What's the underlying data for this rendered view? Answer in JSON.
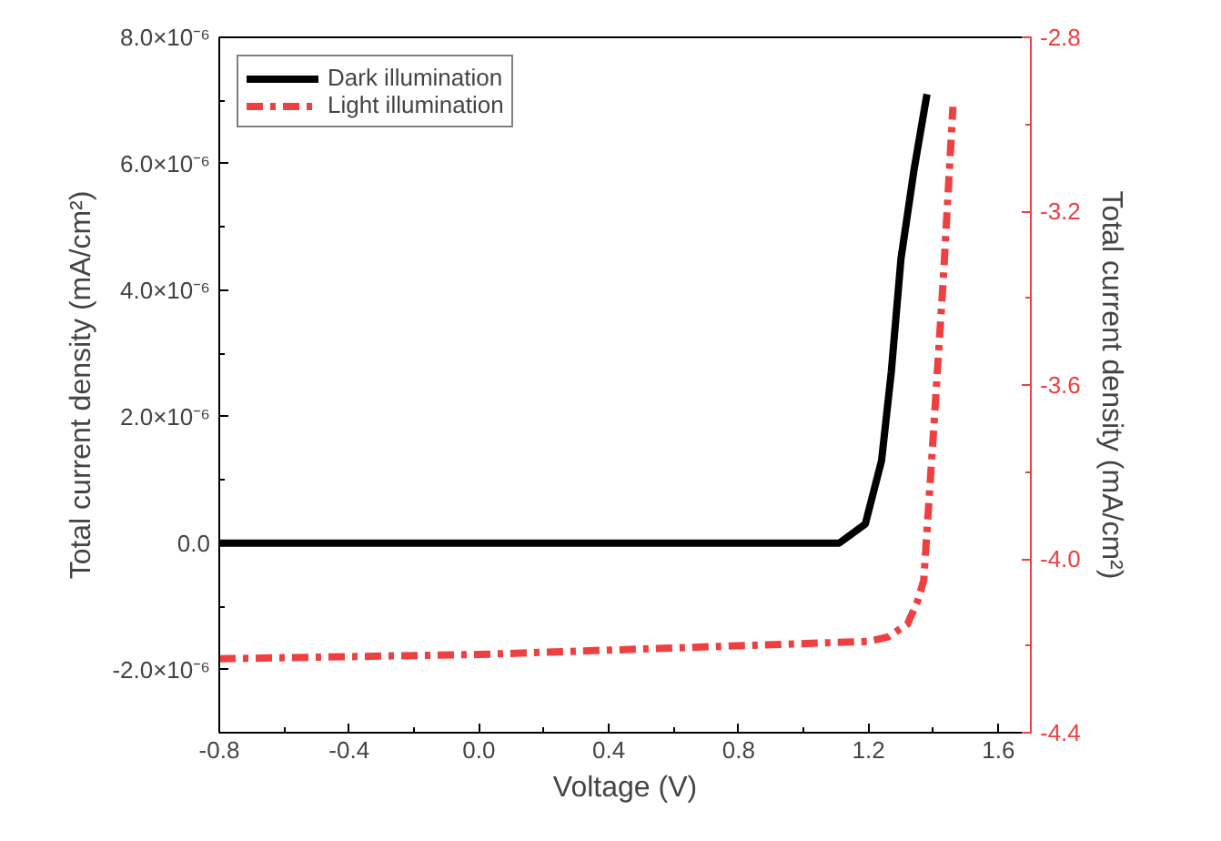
{
  "chart_data": {
    "type": "line",
    "xlabel": "Voltage (V)",
    "ylabel": "Total current density (mA/cm²)",
    "y2label": "Total current density (mA/cm²)",
    "xlim": [
      -0.8,
      1.7
    ],
    "xticks": [
      -0.8,
      -0.4,
      {
        "value": 0,
        "label": "0.0"
      },
      0.4,
      0.8,
      1.2,
      1.6
    ],
    "ylim": [
      -3e-06,
      8e-06
    ],
    "yticks": [
      {
        "value": -2e-06,
        "label": "-2.0×10⁻⁶"
      },
      {
        "value": 0,
        "label": "0.0"
      },
      {
        "value": 2e-06,
        "label": "2.0×10⁻⁶"
      },
      {
        "value": 4e-06,
        "label": "4.0×10⁻⁶"
      },
      {
        "value": 6e-06,
        "label": "6.0×10⁻⁶"
      },
      {
        "value": 8e-06,
        "label": "8.0×10⁻⁶"
      }
    ],
    "y2lim": [
      -4.4,
      -2.8
    ],
    "y2ticks": [
      -4.4,
      {
        "value": -4,
        "label": "-4.0"
      },
      -3.6,
      -3.2,
      -2.8
    ],
    "grid": false,
    "legend": "top left",
    "marker": "none",
    "series": [
      {
        "name": "Dark illumination",
        "color": "#000000",
        "line_style": "solid",
        "x": [
          -0.8,
          0.0,
          0.8,
          1.11,
          1.19,
          1.24,
          1.27,
          1.3,
          1.34,
          1.38
        ],
        "values": [
          0,
          0,
          0,
          0,
          3e-07,
          1.3e-06,
          2.7e-06,
          4.5e-06,
          5.9e-06,
          7.1e-06
        ]
      },
      {
        "name": "Light illumination",
        "color": "#ee4040",
        "line_style": "dashdot",
        "axis": "y2",
        "x": [
          -0.8,
          0.0,
          0.8,
          1.2,
          1.26,
          1.32,
          1.35,
          1.37,
          1.4,
          1.43,
          1.46
        ],
        "values": [
          -4.23,
          -4.22,
          -4.2,
          -4.19,
          -4.18,
          -4.15,
          -4.1,
          -4.05,
          -3.71,
          -3.36,
          -2.96
        ]
      }
    ]
  }
}
